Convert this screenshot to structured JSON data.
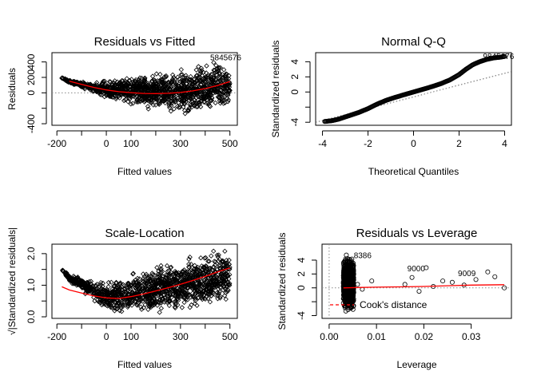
{
  "chart_data": [
    {
      "type": "scatter",
      "title": "Residuals vs Fitted",
      "xlabel": "Fitted values",
      "ylabel": "Residuals",
      "xlim": [
        -220,
        530
      ],
      "ylim": [
        -420,
        520
      ],
      "x_ticks": [
        -200,
        0,
        100,
        300,
        500
      ],
      "x_tick_labels": [
        "-200",
        "0",
        "100",
        "300",
        "500"
      ],
      "x_minor_ticks": [
        -100,
        200,
        400
      ],
      "y_ticks": [
        -400,
        0,
        200,
        400
      ],
      "y_tick_labels": [
        "-400",
        "0",
        "200",
        "400"
      ],
      "y_minor_ticks": [
        -200
      ],
      "reference_line": {
        "y": 0,
        "style": "dotted"
      },
      "smoother": {
        "color": "#ff0000",
        "x": [
          -150,
          -100,
          -50,
          0,
          50,
          100,
          150,
          200,
          250,
          300,
          350,
          400,
          450,
          500
        ],
        "y": [
          150,
          110,
          70,
          38,
          15,
          2,
          -8,
          -10,
          -6,
          5,
          25,
          55,
          95,
          145
        ]
      },
      "point_cloud": {
        "marker": "open-diamond",
        "x": [
          -180,
          -150,
          -100,
          -50,
          0,
          50,
          100,
          150,
          200,
          250,
          300,
          350,
          400,
          450,
          500
        ],
        "upper": [
          205,
          175,
          150,
          130,
          180,
          220,
          250,
          280,
          300,
          310,
          330,
          380,
          420,
          440,
          300
        ],
        "lower": [
          180,
          120,
          60,
          -10,
          -90,
          -150,
          -190,
          -220,
          -250,
          -280,
          -300,
          -320,
          -300,
          -260,
          -220
        ]
      },
      "labels": [
        "5",
        "84",
        "56",
        "76"
      ]
    },
    {
      "type": "scatter",
      "title": "Normal Q-Q",
      "xlabel": "Theoretical Quantiles",
      "ylabel": "Standardized residuals",
      "xlim": [
        -4.3,
        4.3
      ],
      "ylim": [
        -4.4,
        5.2
      ],
      "x_ticks": [
        -4,
        -2,
        0,
        2,
        4
      ],
      "x_tick_labels": [
        "-4",
        "-2",
        "0",
        "2",
        "4"
      ],
      "y_ticks": [
        -4,
        0,
        2,
        4
      ],
      "y_tick_labels": [
        "-4",
        "0",
        "2",
        "4"
      ],
      "y_minor_ticks": [
        -2
      ],
      "reference_line": {
        "x": [
          -4.3,
          4.3
        ],
        "y": [
          -4.0,
          2.7
        ],
        "style": "dotted"
      },
      "points": {
        "marker": "open-circle",
        "x": [
          -3.9,
          -3.6,
          -3.3,
          -3.0,
          -2.7,
          -2.4,
          -2.0,
          -1.6,
          -1.2,
          -0.8,
          -0.4,
          0,
          0.4,
          0.8,
          1.2,
          1.6,
          2.0,
          2.3,
          2.6,
          2.9,
          3.2,
          3.5,
          3.8,
          4.0
        ],
        "y": [
          -3.9,
          -3.8,
          -3.6,
          -3.3,
          -3.0,
          -2.7,
          -2.2,
          -1.6,
          -1.1,
          -0.7,
          -0.35,
          0,
          0.35,
          0.7,
          1.1,
          1.6,
          2.3,
          3.0,
          3.6,
          4.0,
          4.3,
          4.5,
          4.6,
          4.7
        ]
      },
      "labels": [
        "9",
        "84",
        "56",
        "76"
      ]
    },
    {
      "type": "scatter",
      "title": "Scale-Location",
      "xlabel": "Fitted values",
      "ylabel": "√|Standardized residuals|",
      "xlim": [
        -220,
        530
      ],
      "ylim": [
        -0.05,
        2.3
      ],
      "x_ticks": [
        -200,
        0,
        100,
        300,
        500
      ],
      "x_tick_labels": [
        "-200",
        "0",
        "100",
        "300",
        "500"
      ],
      "x_minor_ticks": [
        -100,
        200,
        400
      ],
      "y_ticks": [
        0.0,
        1.0,
        2.0
      ],
      "y_tick_labels": [
        "0.0",
        "1.0",
        "2.0"
      ],
      "y_minor_ticks": [
        0.5,
        1.5
      ],
      "smoother": {
        "color": "#ff0000",
        "x": [
          -180,
          -150,
          -100,
          -50,
          0,
          50,
          100,
          150,
          200,
          250,
          300,
          350,
          400,
          450,
          500
        ],
        "y": [
          0.95,
          0.85,
          0.75,
          0.66,
          0.6,
          0.58,
          0.64,
          0.72,
          0.82,
          0.92,
          1.03,
          1.15,
          1.28,
          1.42,
          1.55
        ]
      },
      "point_cloud": {
        "marker": "open-diamond",
        "x": [
          -180,
          -150,
          -100,
          -50,
          0,
          50,
          100,
          150,
          200,
          250,
          300,
          350,
          400,
          450,
          500
        ],
        "upper": [
          1.55,
          1.35,
          1.25,
          1.15,
          1.2,
          1.35,
          1.5,
          1.6,
          1.7,
          1.8,
          1.9,
          2.0,
          2.1,
          2.15,
          2.1
        ],
        "lower": [
          1.45,
          1.1,
          0.8,
          0.5,
          0.05,
          0.02,
          0.02,
          0.03,
          0.05,
          0.05,
          0.05,
          0.1,
          0.2,
          0.3,
          0.5
        ]
      }
    },
    {
      "type": "scatter",
      "title": "Residuals vs Leverage",
      "xlabel": "Leverage",
      "ylabel": "Standardized residuals",
      "xlim": [
        -0.0015,
        0.0385
      ],
      "ylim": [
        -4.4,
        6.3
      ],
      "x_ticks": [
        0.0,
        0.01,
        0.02,
        0.03
      ],
      "x_tick_labels": [
        "0.00",
        "0.01",
        "0.02",
        "0.03"
      ],
      "y_ticks": [
        -4,
        0,
        2,
        4
      ],
      "y_tick_labels": [
        "-4",
        "0",
        "2",
        "4"
      ],
      "y_minor_ticks": [
        -2
      ],
      "reference_lines": [
        {
          "y": 0,
          "style": "dotted"
        },
        {
          "x": 0,
          "style": "dotted"
        }
      ],
      "smoother": {
        "color": "#ff0000",
        "x": [
          0.003,
          0.006,
          0.01,
          0.015,
          0.02,
          0.025,
          0.03,
          0.037
        ],
        "y": [
          0,
          0.05,
          0.1,
          0.15,
          0.2,
          0.3,
          0.4,
          0.45
        ]
      },
      "bulk_cluster": {
        "x_range": [
          0.003,
          0.0052
        ],
        "y_range": [
          -3.8,
          5.0
        ]
      },
      "outliers": {
        "x": [
          0.006,
          0.007,
          0.009,
          0.016,
          0.0175,
          0.019,
          0.0205,
          0.022,
          0.024,
          0.026,
          0.0285,
          0.031,
          0.0335,
          0.035,
          0.037
        ],
        "y": [
          0.5,
          -0.2,
          1.0,
          0.5,
          1.5,
          -0.5,
          2.9,
          0.2,
          1.0,
          0.8,
          0.4,
          1.2,
          2.3,
          1.6,
          0.0
        ]
      },
      "labels": [
        "8386",
        "9000",
        "9009"
      ],
      "legend": {
        "label": "Cook's distance",
        "position": "bottom-left",
        "style": "dashed",
        "color": "#ff0000"
      }
    }
  ]
}
